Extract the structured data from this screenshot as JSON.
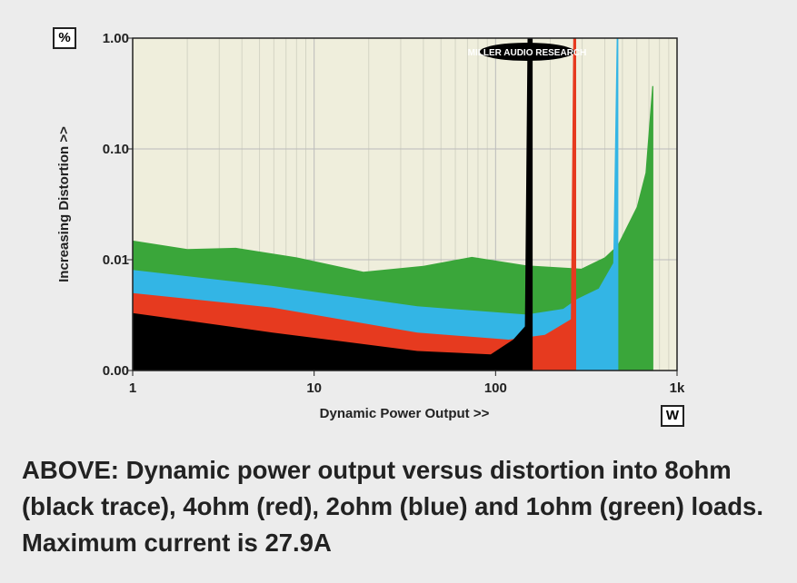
{
  "chart_data": {
    "type": "area",
    "title": "",
    "xlabel": "Dynamic Power Output >>",
    "ylabel": "Increasing Distortion >>",
    "x_unit": "W",
    "y_unit": "%",
    "xscale": "log",
    "yscale": "log",
    "xlim": [
      1,
      1000
    ],
    "ylim": [
      0.001,
      1.0
    ],
    "xticks": [
      {
        "v": 1,
        "label": "1"
      },
      {
        "v": 10,
        "label": "10"
      },
      {
        "v": 100,
        "label": "100"
      },
      {
        "v": 1000,
        "label": "1k"
      }
    ],
    "yticks": [
      {
        "v": 1,
        "label": "1.00"
      },
      {
        "v": 0.1,
        "label": "0.10"
      },
      {
        "v": 0.01,
        "label": "0.01"
      },
      {
        "v": 0.001,
        "label": "0.00"
      }
    ],
    "grid": true,
    "logo": "MILLER AUDIO RESEARCH",
    "series": [
      {
        "name": "1ohm",
        "color": "#3aa63a",
        "points": [
          [
            1,
            0.0149
          ],
          [
            2,
            0.0125
          ],
          [
            3.7,
            0.0128
          ],
          [
            8,
            0.0105
          ],
          [
            18.7,
            0.0078
          ],
          [
            40,
            0.0088
          ],
          [
            74,
            0.0106
          ],
          [
            148,
            0.0089
          ],
          [
            297,
            0.0083
          ],
          [
            400,
            0.0105
          ],
          [
            470,
            0.0135
          ],
          [
            600,
            0.03
          ],
          [
            670,
            0.061
          ],
          [
            730,
            0.37
          ],
          [
            740,
            0.37
          ]
        ]
      },
      {
        "name": "2ohm",
        "color": "#33b5e5",
        "points": [
          [
            1,
            0.0081
          ],
          [
            5.9,
            0.0058
          ],
          [
            37,
            0.0038
          ],
          [
            148,
            0.0032
          ],
          [
            236,
            0.0036
          ],
          [
            280,
            0.0044
          ],
          [
            370,
            0.0055
          ],
          [
            445,
            0.0093
          ],
          [
            465,
            1.0
          ],
          [
            475,
            1.0
          ]
        ]
      },
      {
        "name": "4ohm",
        "color": "#e63a1f",
        "points": [
          [
            1,
            0.005
          ],
          [
            5.9,
            0.0037
          ],
          [
            37,
            0.0022
          ],
          [
            118,
            0.0019
          ],
          [
            187,
            0.0021
          ],
          [
            260,
            0.0029
          ],
          [
            268,
            1.0
          ],
          [
            278,
            1.0
          ]
        ]
      },
      {
        "name": "8ohm",
        "color": "#000000",
        "points": [
          [
            1,
            0.0033
          ],
          [
            5.9,
            0.0022
          ],
          [
            37,
            0.0015
          ],
          [
            94,
            0.0014
          ],
          [
            125,
            0.0019
          ],
          [
            145,
            0.0025
          ],
          [
            150,
            1.0
          ],
          [
            160,
            1.0
          ]
        ]
      }
    ]
  },
  "caption": "ABOVE: Dynamic power output versus distortion into 8ohm (black trace), 4ohm (red), 2ohm (blue) and 1ohm (green) loads. Maximum current is 27.9A"
}
